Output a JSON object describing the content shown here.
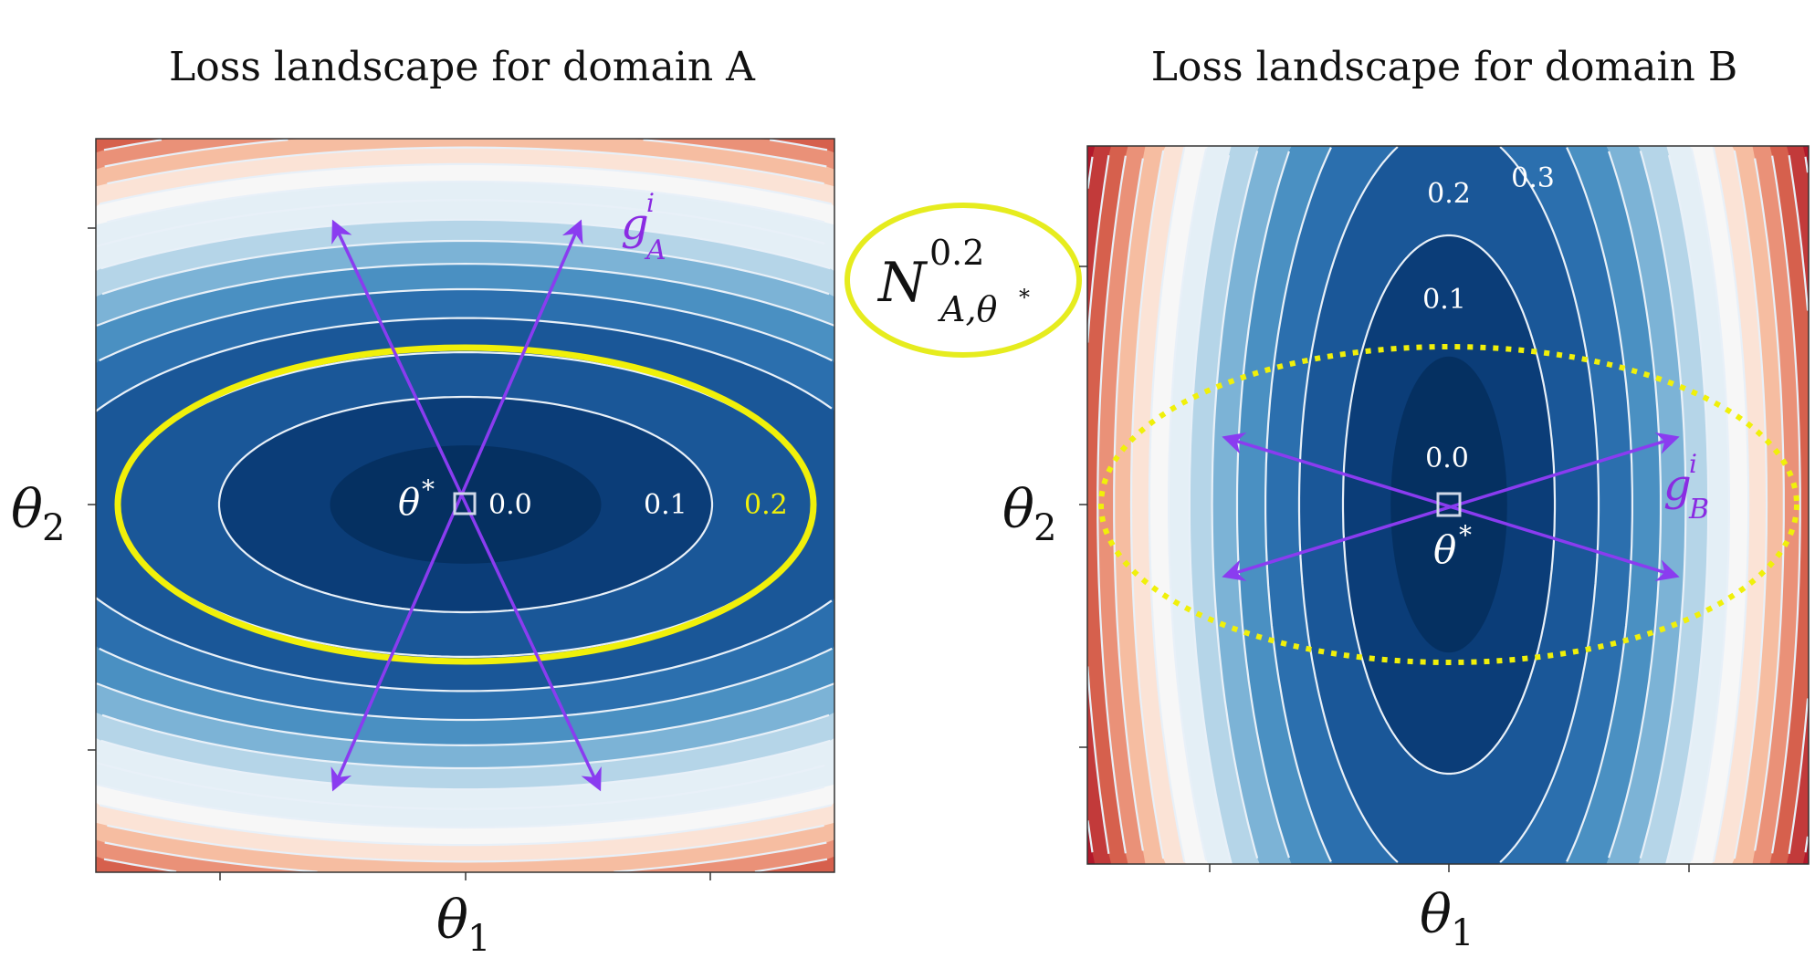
{
  "panels": [
    {
      "id": "A",
      "title": "Loss landscape for domain A",
      "xlabel": "θ",
      "xlabel_sub": "1",
      "ylabel": "θ",
      "ylabel_sub": "2",
      "contour_labels": [
        "0.0",
        "0.1",
        "0.2"
      ],
      "optimum_label": "θ",
      "optimum_sup": "*",
      "gradient_label": "g",
      "gradient_sup": "i",
      "gradient_sub": "A",
      "neighborhood_style": "solid"
    },
    {
      "id": "B",
      "title": "Loss landscape for domain B",
      "xlabel": "θ",
      "xlabel_sub": "1",
      "ylabel": "θ",
      "ylabel_sub": "2",
      "contour_labels": [
        "0.0",
        "0.1",
        "0.2",
        "0.3"
      ],
      "optimum_label": "θ",
      "optimum_sup": "*",
      "gradient_label": "g",
      "gradient_sup": "i",
      "gradient_sub": "B",
      "neighborhood_style": "dotted"
    }
  ],
  "legend": {
    "symbol": "N",
    "sup": "0.2",
    "sub": "A,θ",
    "sub_sup": "*"
  },
  "colors": {
    "colormap": "RdBu_r",
    "ramp": [
      "#053061",
      "#0b3d78",
      "#1a5798",
      "#2b6fae",
      "#4a90c2",
      "#7cb3d6",
      "#b5d5e8",
      "#e4eff6",
      "#f7f7f7",
      "#fbe3d6",
      "#f6bda1",
      "#ea9178",
      "#d6604d",
      "#c23a3a",
      "#b2182b"
    ],
    "contour_lines": "#e8f0f8",
    "neighborhood": "#f0f00a",
    "legend_ellipse": "#e6ec1e",
    "arrows": "#8a3cf0",
    "gradient_label": "#8a2be2",
    "optimum_marker": "#d0d8e8",
    "contour_label_A_0.2": "#f0f00a"
  }
}
